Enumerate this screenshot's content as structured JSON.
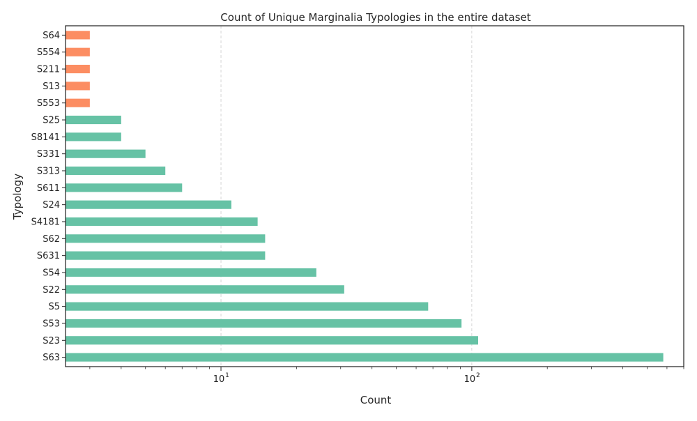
{
  "chart_data": {
    "type": "bar",
    "orientation": "horizontal",
    "title": "Count of Unique Marginalia Typologies in the entire dataset",
    "xlabel": "Count",
    "ylabel": "Typology",
    "x_scale": "log",
    "xlim": [
      2.4,
      700
    ],
    "x_major_ticks": [
      {
        "value": 10,
        "base": "10",
        "exp": "1"
      },
      {
        "value": 100,
        "base": "10",
        "exp": "2"
      }
    ],
    "grid": "x-major dashed",
    "categories": [
      "S63",
      "S23",
      "S53",
      "S5",
      "S22",
      "S54",
      "S631",
      "S62",
      "S4181",
      "S24",
      "S611",
      "S313",
      "S331",
      "S8141",
      "S25",
      "S553",
      "S13",
      "S211",
      "S554",
      "S64"
    ],
    "values": [
      580,
      106,
      91,
      67,
      31,
      24,
      15,
      15,
      14,
      11,
      7,
      6,
      5,
      4,
      4,
      3,
      3,
      3,
      3,
      3
    ],
    "colors": {
      "default": "#66c2a5",
      "highlight": "#fc8d62",
      "highlight_indices": [
        15,
        16,
        17,
        18,
        19
      ],
      "grid": "#cccccc",
      "frame": "#262626"
    }
  }
}
